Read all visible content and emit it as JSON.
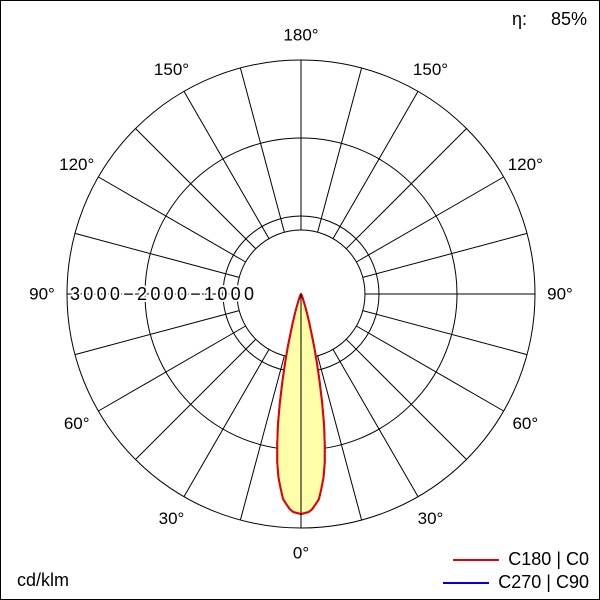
{
  "page": {
    "efficiency_label": "η:",
    "efficiency_value": "85%",
    "unit_label": "cd/klm"
  },
  "legend": {
    "items": [
      {
        "label": "C180 | C0",
        "color": "#e60000"
      },
      {
        "label": "C270 | C90",
        "color": "#0000dd"
      }
    ]
  },
  "chart_data": {
    "type": "polar",
    "subtype": "luminous-intensity-distribution",
    "unit": "cd/klm",
    "efficiency": "85%",
    "rmax": 3000,
    "ring_values": [
      1000,
      2000,
      3000
    ],
    "angle_tick_labels_deg": [
      0,
      30,
      60,
      90,
      120,
      150,
      180
    ],
    "spoke_step_deg": 15,
    "grid_color": "#000000",
    "series": [
      {
        "name": "C180 | C0",
        "color": "#e60000",
        "fill": "#ffffaa",
        "gamma_deg": [
          0,
          2.5,
          5,
          7.5,
          10,
          12.5,
          15,
          17.5,
          20,
          22.5,
          25,
          30,
          45,
          60,
          75,
          90
        ],
        "values_cd_per_klm": [
          2820,
          2790,
          2640,
          2300,
          1700,
          1000,
          500,
          220,
          90,
          40,
          15,
          0,
          0,
          0,
          0,
          0
        ]
      },
      {
        "name": "C270 | C90",
        "color": "#0000dd",
        "fill": "none",
        "gamma_deg": [
          0,
          2.5,
          5,
          7.5,
          10,
          12.5,
          15,
          17.5,
          20,
          22.5,
          25,
          30,
          45,
          60,
          75,
          90
        ],
        "values_cd_per_klm": [
          2820,
          2790,
          2640,
          2300,
          1700,
          1000,
          500,
          220,
          90,
          40,
          15,
          0,
          0,
          0,
          0,
          0
        ]
      }
    ]
  }
}
